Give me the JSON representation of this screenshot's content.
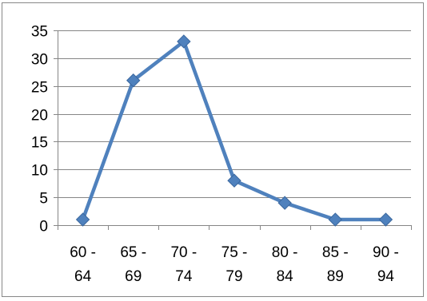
{
  "chart_data": {
    "type": "line",
    "title": "",
    "xlabel": "",
    "ylabel": "",
    "categories": [
      "60 - 64",
      "65 - 69",
      "70 - 74",
      "75 - 79",
      "80 - 84",
      "85 - 89",
      "90 - 94"
    ],
    "category_lines": [
      [
        "60 -",
        "64"
      ],
      [
        "65 -",
        "69"
      ],
      [
        "70 -",
        "74"
      ],
      [
        "75 -",
        "79"
      ],
      [
        "80 -",
        "84"
      ],
      [
        "85 -",
        "89"
      ],
      [
        "90 -",
        "94"
      ]
    ],
    "series": [
      {
        "values": [
          1,
          26,
          33,
          8,
          4,
          1,
          1
        ],
        "color": "#4F81BD",
        "marker": "diamond"
      }
    ],
    "ylim": [
      0,
      35
    ],
    "yticks": [
      0,
      5,
      10,
      15,
      20,
      25,
      30,
      35
    ],
    "grid": "horizontal",
    "legend": "none"
  }
}
